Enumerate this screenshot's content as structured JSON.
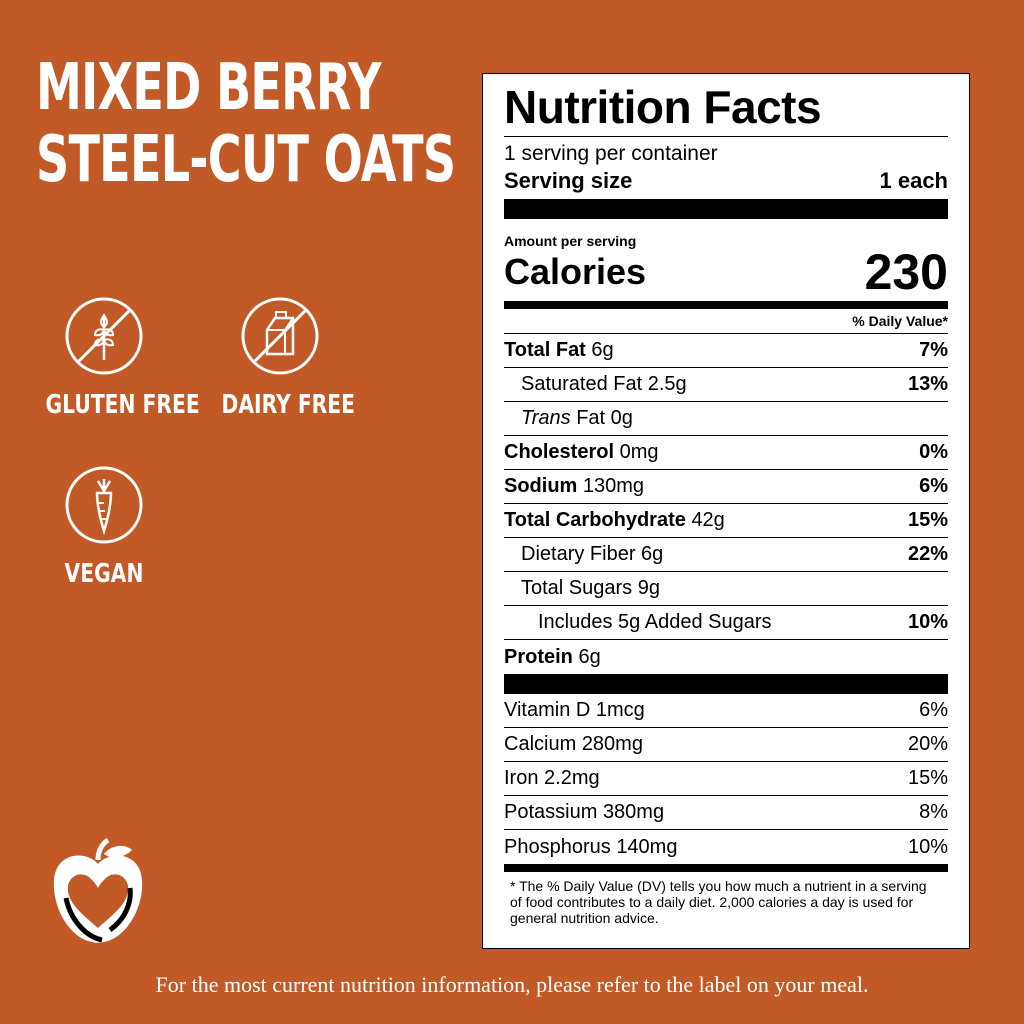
{
  "title": {
    "line1": "MIXED BERRY",
    "line2": "STEEL-CUT OATS"
  },
  "badges": [
    {
      "icon": "wheat-crossed-icon",
      "label": "GLUTEN FREE"
    },
    {
      "icon": "milk-carton-crossed-icon",
      "label": "DAIRY FREE"
    },
    {
      "icon": "carrot-icon",
      "label": "VEGAN"
    }
  ],
  "nutrition": {
    "title": "Nutrition Facts",
    "servings": "1 serving per container",
    "serving_size_label": "Serving size",
    "serving_size_value": "1 each",
    "amount_per_serving": "Amount per serving",
    "calories_label": "Calories",
    "calories_value": "230",
    "dv_header": "% Daily Value*",
    "rows": [
      {
        "bold": "Total Fat",
        "amount": "6g",
        "dv": "7%"
      },
      {
        "bold": "",
        "label": "Saturated Fat",
        "amount": "2.5g",
        "dv": "13%"
      },
      {
        "italic": "Trans",
        "label": "Fat",
        "amount": "0g",
        "dv": ""
      },
      {
        "bold": "Cholesterol",
        "amount": "0mg",
        "dv": "0%"
      },
      {
        "bold": "Sodium",
        "amount": "130mg",
        "dv": "6%"
      },
      {
        "bold": "Total Carbohydrate",
        "amount": "42g",
        "dv": "15%"
      },
      {
        "label": "Dietary Fiber",
        "amount": "6g",
        "dv": "22%"
      },
      {
        "label": "Total Sugars",
        "amount": "9g",
        "dv": ""
      },
      {
        "label": "Includes 5g Added Sugars",
        "amount": "",
        "dv": "10%"
      },
      {
        "bold": "Protein",
        "amount": "6g",
        "dv": ""
      }
    ],
    "vitamins": [
      {
        "label": "Vitamin D",
        "amount": "1mcg",
        "dv": "6%"
      },
      {
        "label": "Calcium",
        "amount": "280mg",
        "dv": "20%"
      },
      {
        "label": "Iron",
        "amount": "2.2mg",
        "dv": "15%"
      },
      {
        "label": "Potassium",
        "amount": "380mg",
        "dv": "8%"
      },
      {
        "label": "Phosphorus",
        "amount": "140mg",
        "dv": "10%"
      }
    ],
    "footnote": "* The % Daily Value (DV) tells you how much a nutrient in a serving of food contributes to a daily diet. 2,000 calories a day is used for general nutrition advice."
  },
  "footer": "For the most current nutrition information, please refer to the label on your meal.",
  "colors": {
    "background": "#C15A27",
    "text_light": "#FFFFFF"
  }
}
